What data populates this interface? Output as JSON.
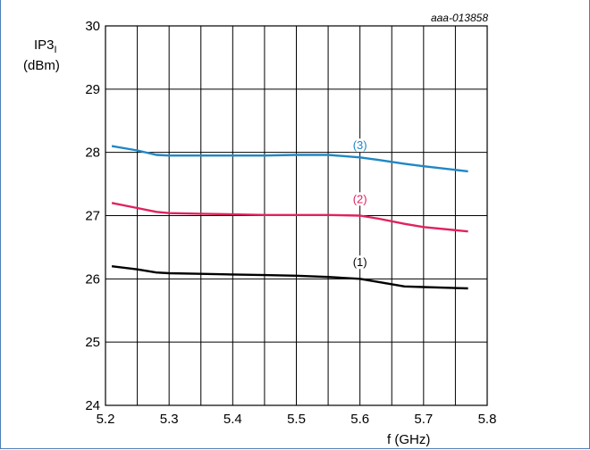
{
  "chart_data": {
    "type": "line",
    "code": "aaa-013858",
    "ylabel_main": "IP3",
    "ylabel_sub": "I",
    "ylabel_unit": "(dBm)",
    "xlabel": "f (GHz)",
    "xlim": [
      5.2,
      5.8
    ],
    "ylim": [
      24,
      30
    ],
    "x_ticks": [
      "5.2",
      "5.3",
      "5.4",
      "5.5",
      "5.6",
      "5.7",
      "5.8"
    ],
    "y_ticks": [
      "24",
      "25",
      "26",
      "27",
      "28",
      "29",
      "30"
    ],
    "x_minor_step": 0.05,
    "grid": true,
    "series": [
      {
        "name": "(1)",
        "color": "#000000",
        "label_at": [
          5.6,
          26.2
        ],
        "x": [
          5.21,
          5.25,
          5.28,
          5.3,
          5.35,
          5.4,
          5.45,
          5.5,
          5.55,
          5.6,
          5.63,
          5.67,
          5.7,
          5.77
        ],
        "y": [
          26.2,
          26.15,
          26.1,
          26.09,
          26.08,
          26.07,
          26.06,
          26.05,
          26.03,
          26.0,
          25.95,
          25.88,
          25.87,
          25.85
        ]
      },
      {
        "name": "(2)",
        "color": "#e0225e",
        "label_at": [
          5.6,
          27.2
        ],
        "x": [
          5.21,
          5.25,
          5.28,
          5.3,
          5.35,
          5.4,
          5.45,
          5.5,
          5.55,
          5.6,
          5.63,
          5.67,
          5.7,
          5.77
        ],
        "y": [
          27.2,
          27.12,
          27.06,
          27.04,
          27.03,
          27.02,
          27.01,
          27.01,
          27.01,
          27.0,
          26.95,
          26.87,
          26.82,
          26.75
        ]
      },
      {
        "name": "(3)",
        "color": "#1f87c4",
        "label_at": [
          5.6,
          28.05
        ],
        "x": [
          5.21,
          5.25,
          5.28,
          5.3,
          5.35,
          5.4,
          5.45,
          5.5,
          5.55,
          5.6,
          5.63,
          5.67,
          5.7,
          5.77
        ],
        "y": [
          28.1,
          28.03,
          27.96,
          27.95,
          27.95,
          27.95,
          27.95,
          27.96,
          27.96,
          27.92,
          27.88,
          27.82,
          27.78,
          27.7
        ]
      }
    ]
  }
}
